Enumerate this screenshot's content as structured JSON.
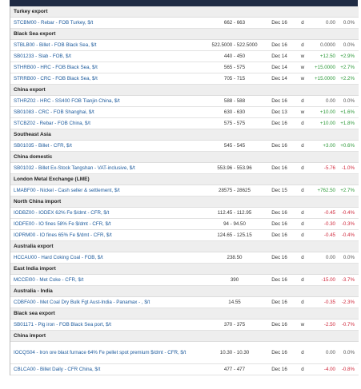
{
  "sections": [
    {
      "title": "Turkey export",
      "rows": [
        [
          "STCBM00 - Rebar - FOB Turkey, $/t",
          "662 - 663",
          "Dec 16",
          "d",
          "0.00",
          "0.0%"
        ]
      ]
    },
    {
      "title": "Black Sea export",
      "rows": [
        [
          "STBLB00 - Billet - FOB Black Sea, $/t",
          "522.5000 - 522.5000",
          "Dec 16",
          "d",
          "0.0000",
          "0.0%"
        ],
        [
          "SB01233 - Slab - FOB, $/t",
          "440 - 450",
          "Dec 14",
          "w",
          "+12.50",
          "+2.9%"
        ],
        [
          "STHRB00 - HRC - FOB Black Sea, $/t",
          "565 - 575",
          "Dec 14",
          "w",
          "+15.0000",
          "+2.7%"
        ],
        [
          "STRRB00 - CRC - FOB Black Sea, $/t",
          "705 - 715",
          "Dec 14",
          "w",
          "+15.0000",
          "+2.2%"
        ]
      ]
    },
    {
      "title": "China export",
      "rows": [
        [
          "STHRZ02 - HRC - SS400 FOB Tianjin China, $/t",
          "588 - 588",
          "Dec 16",
          "d",
          "0.00",
          "0.0%"
        ],
        [
          "SB01083 - CRC - FOB Shanghai, $/t",
          "630 - 630",
          "Dec 13",
          "w",
          "+10.00",
          "+1.6%"
        ],
        [
          "STCBZ02 - Rebar - FOB China, $/t",
          "575 - 575",
          "Dec 16",
          "d",
          "+10.00",
          "+1.8%"
        ]
      ]
    },
    {
      "title": "Southeast Asia",
      "rows": [
        [
          "SB01035 - Billet - CFR, $/t",
          "545 - 545",
          "Dec 16",
          "d",
          "+3.00",
          "+0.6%"
        ]
      ]
    },
    {
      "title": "China domestic",
      "rows": [
        [
          "SB01032 - Billet Ex-Stock Tangshan - VAT-inclusive, $/t",
          "553.96 - 553.96",
          "Dec 16",
          "d",
          "-5.76",
          "-1.0%"
        ]
      ]
    },
    {
      "title": "London Metal Exchange (LME)",
      "rows": [
        [
          "LMABF00 - Nickel - Cash seller & settlement, $/t",
          "28575 - 28625",
          "Dec 15",
          "d",
          "+762.50",
          "+2.7%"
        ]
      ]
    },
    {
      "title": "North China import",
      "rows": [
        [
          "IODBZ00 - IODEX 62% Fe $/dmt - CFR, $/t",
          "112.45 - 112.95",
          "Dec 16",
          "d",
          "-0.45",
          "-0.4%"
        ],
        [
          "IODFE00 - IO fines 58% Fe $/dmt - CFR, $/t",
          "94 - 94.50",
          "Dec 16",
          "d",
          "-0.30",
          "-0.3%"
        ],
        [
          "IOPRM00 - IO fines 65% Fe $/dmt - CFR, $/t",
          "124.65 - 125.15",
          "Dec 16",
          "d",
          "-0.45",
          "-0.4%"
        ]
      ]
    },
    {
      "title": "Australia export",
      "rows": [
        [
          "HCCAU00 - Hard Coking Coal - FOB, $/t",
          "238.50",
          "Dec 16",
          "d",
          "0.00",
          "0.0%"
        ]
      ]
    },
    {
      "title": "East India import",
      "rows": [
        [
          "MCCEI00 - Met Coke - CFR, $/t",
          "390",
          "Dec 16",
          "d",
          "-15.00",
          "-3.7%"
        ]
      ]
    },
    {
      "title": "Australia - India",
      "rows": [
        [
          "CDBFA00 - Met Coal Dry Bulk Fgt Aust-India - Panamax - , $/t",
          "14.55",
          "Dec 16",
          "d",
          "-0.35",
          "-2.3%"
        ]
      ]
    },
    {
      "title": "Black sea export",
      "rows": [
        [
          "SB01171 - Pig iron - FOB Black Sea port, $/t",
          "370 - 375",
          "Dec 16",
          "w",
          "-2.50",
          "-0.7%"
        ]
      ]
    },
    {
      "title": "China import",
      "rows": [
        [
          "IOCQS04 - Iron ore blast furnace 64% Fe pellet spot premium $/dmt - CFR, $/t",
          "10.30 - 10.30",
          "Dec 16",
          "d",
          "0.00",
          "0.0%"
        ],
        [
          "CBLCA00 - Billet Daily - CFR China, $/t",
          "477 - 477",
          "Dec 16",
          "d",
          "-4.00",
          "-0.8%"
        ]
      ]
    }
  ]
}
